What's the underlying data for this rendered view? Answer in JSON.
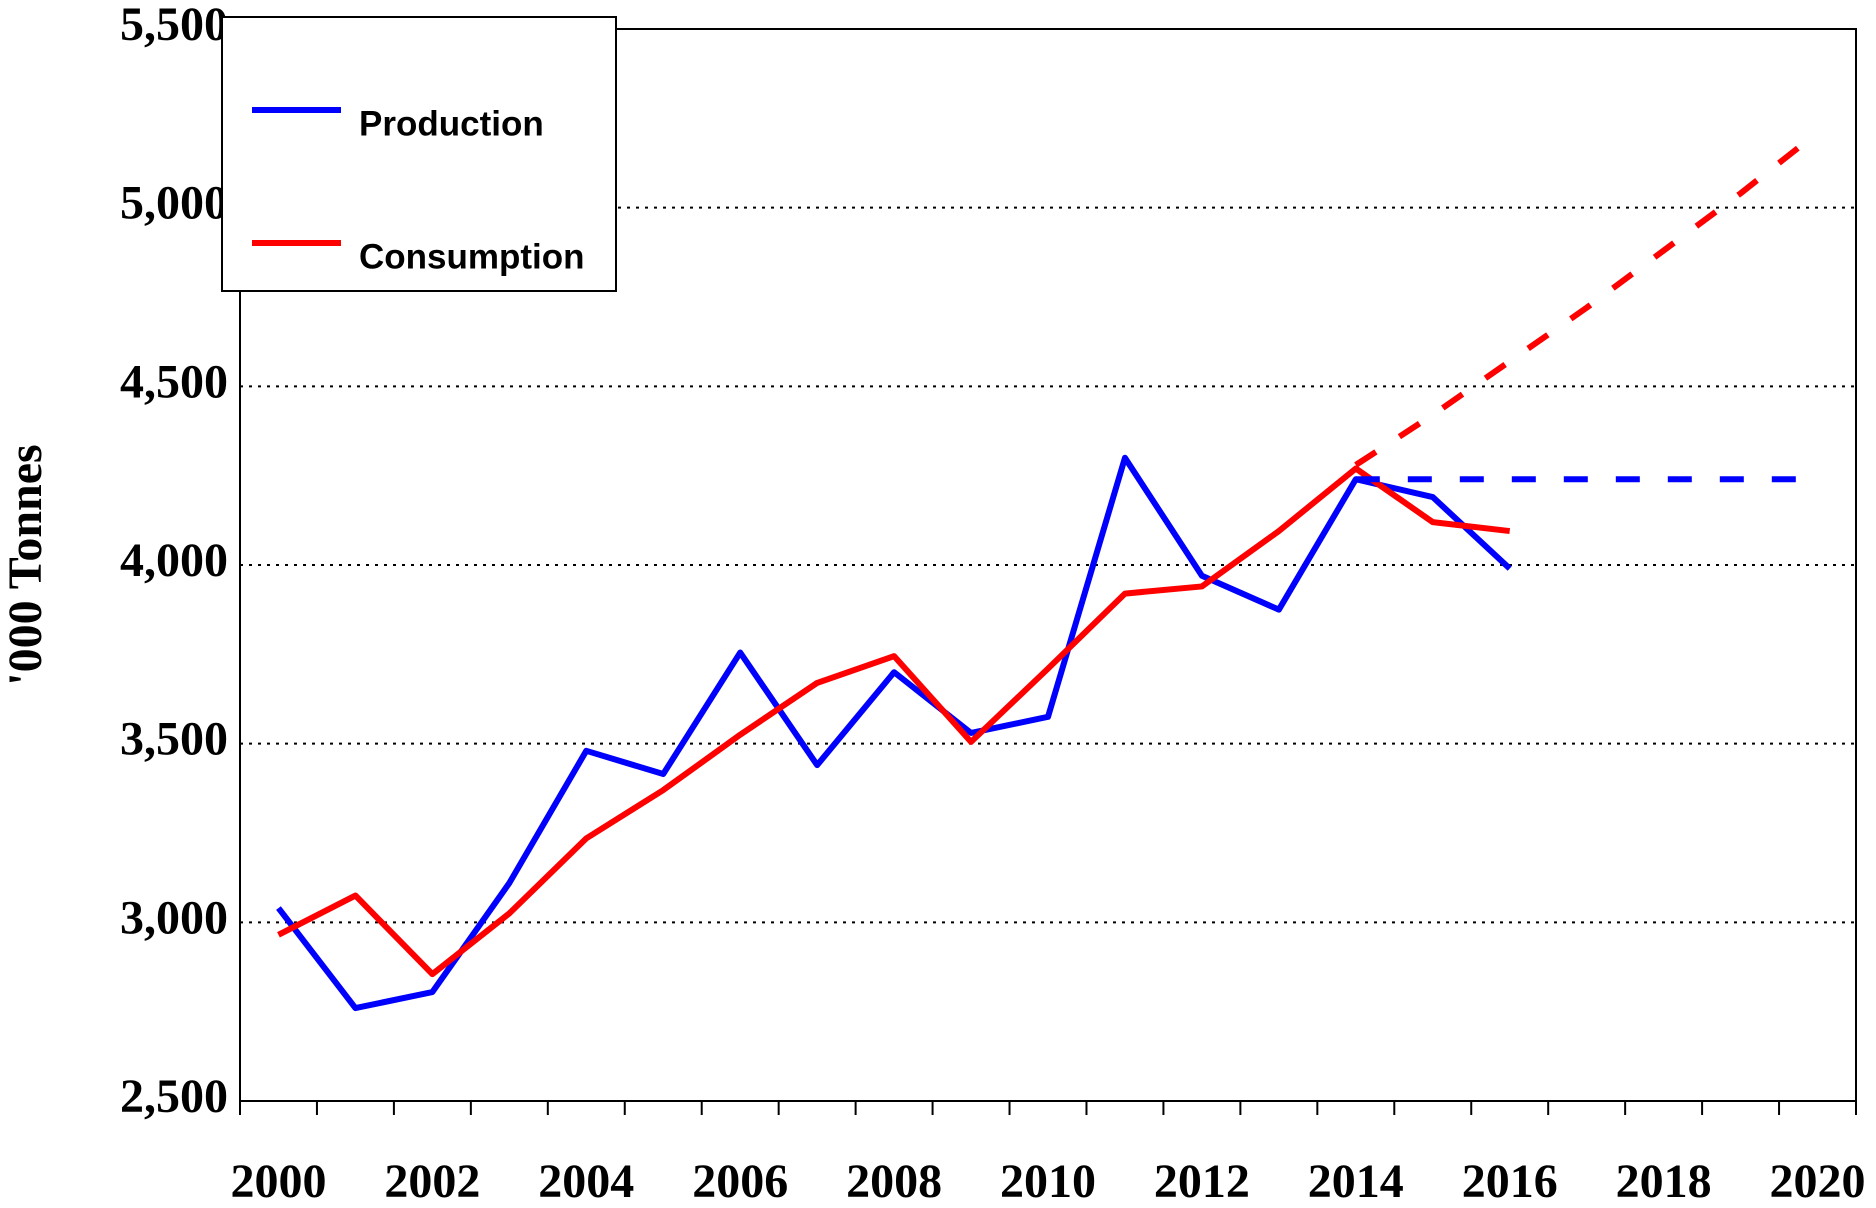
{
  "chart_data": {
    "type": "line",
    "y_label": "'000 Tonnes",
    "categories": [
      "2000",
      null,
      "2002",
      null,
      "2004",
      null,
      "2006",
      null,
      "2008",
      null,
      "2010",
      null,
      "2012",
      null,
      "2014",
      null,
      "2016",
      null,
      "2018",
      null,
      "2020"
    ],
    "series": [
      {
        "name": "Production",
        "color": "#0000ff",
        "values": [
          3040,
          2760,
          2805,
          3110,
          3480,
          3415,
          3755,
          3440,
          3700,
          3530,
          3575,
          4300,
          3970,
          3875,
          4240,
          4190,
          3990,
          null,
          null,
          null,
          null
        ]
      },
      {
        "name": "Consumption",
        "color": "#ff0000",
        "values": [
          2965,
          3075,
          2855,
          3025,
          3235,
          3370,
          3525,
          3670,
          3745,
          3505,
          3710,
          3920,
          3940,
          4095,
          4270,
          4120,
          4095,
          null,
          null,
          null,
          null
        ]
      },
      {
        "color": "#0000ff",
        "dashed": true,
        "values": [
          null,
          null,
          null,
          null,
          null,
          null,
          null,
          null,
          null,
          null,
          null,
          null,
          null,
          null,
          4240,
          4240,
          4240,
          4240,
          4240,
          4240,
          4240
        ]
      },
      {
        "color": "#ff0000",
        "dashed": true,
        "values": [
          null,
          null,
          null,
          null,
          null,
          null,
          null,
          null,
          null,
          null,
          null,
          null,
          null,
          null,
          4280,
          4420,
          4570,
          4720,
          4880,
          5040,
          5210
        ]
      }
    ],
    "ylim": [
      2500,
      5500
    ],
    "yticks": [
      {
        "value": 2500,
        "label": "2,500"
      },
      {
        "value": 3000,
        "label": "3,000"
      },
      {
        "value": 3500,
        "label": "3,500"
      },
      {
        "value": 4000,
        "label": "4,000"
      },
      {
        "value": 4500,
        "label": "4,500"
      },
      {
        "value": 5000,
        "label": "5,000"
      },
      {
        "value": 5500,
        "label": "5,500"
      }
    ],
    "grid": true,
    "legend": "top-left"
  }
}
